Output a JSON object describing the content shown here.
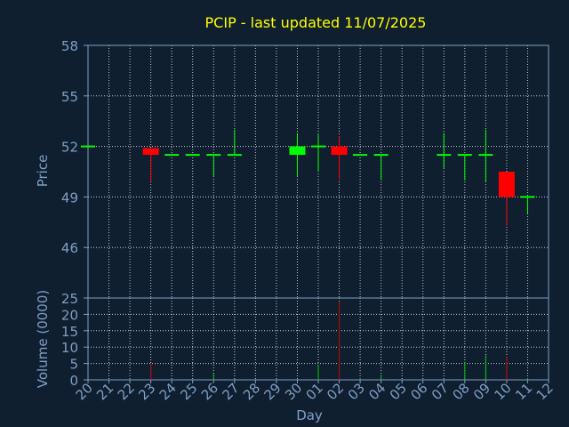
{
  "chart_data": {
    "type": "candlestick",
    "title": "PCIP - last updated 11/07/2025",
    "xlabel": "Day",
    "price_panel": {
      "ylabel": "Price",
      "ylim": [
        43,
        58
      ],
      "yticks": [
        46,
        49,
        52,
        55,
        58
      ],
      "grid": true
    },
    "volume_panel": {
      "ylabel": "Volume (0000)",
      "ylim": [
        0,
        25
      ],
      "yticks": [
        0,
        5,
        10,
        15,
        20,
        25
      ],
      "grid": true
    },
    "x_tick_labels": [
      "20",
      "21",
      "22",
      "23",
      "24",
      "25",
      "26",
      "27",
      "28",
      "29",
      "30",
      "01",
      "02",
      "03",
      "04",
      "05",
      "06",
      "07",
      "08",
      "09",
      "10",
      "11",
      "12"
    ],
    "candles": [
      {
        "day": "20",
        "open": 52.0,
        "high": 52.0,
        "low": 52.0,
        "close": 52.0,
        "volume": 0.0
      },
      {
        "day": "23",
        "open": 51.9,
        "high": 51.9,
        "low": 49.9,
        "close": 51.5,
        "volume": 5.0
      },
      {
        "day": "24",
        "open": 51.5,
        "high": 51.5,
        "low": 51.5,
        "close": 51.5,
        "volume": 0.2
      },
      {
        "day": "25",
        "open": 51.5,
        "high": 51.5,
        "low": 51.5,
        "close": 51.5,
        "volume": 0.2
      },
      {
        "day": "26",
        "open": 51.5,
        "high": 51.5,
        "low": 50.2,
        "close": 51.5,
        "volume": 2.0
      },
      {
        "day": "27",
        "open": 51.5,
        "high": 53.0,
        "low": 51.5,
        "close": 51.5,
        "volume": 0.3
      },
      {
        "day": "30",
        "open": 51.5,
        "high": 52.8,
        "low": 50.2,
        "close": 52.0,
        "volume": 0.3
      },
      {
        "day": "01",
        "open": 52.0,
        "high": 52.7,
        "low": 50.5,
        "close": 52.0,
        "volume": 4.5
      },
      {
        "day": "02",
        "open": 52.0,
        "high": 52.6,
        "low": 50.0,
        "close": 51.5,
        "volume": 24.0
      },
      {
        "day": "03",
        "open": 51.5,
        "high": 51.5,
        "low": 51.5,
        "close": 51.5,
        "volume": 0.5
      },
      {
        "day": "04",
        "open": 51.5,
        "high": 51.5,
        "low": 50.0,
        "close": 51.5,
        "volume": 1.5
      },
      {
        "day": "07",
        "open": 51.5,
        "high": 52.8,
        "low": 50.7,
        "close": 51.5,
        "volume": 0.3
      },
      {
        "day": "08",
        "open": 51.5,
        "high": 51.5,
        "low": 50.0,
        "close": 51.5,
        "volume": 5.5
      },
      {
        "day": "09",
        "open": 51.5,
        "high": 53.0,
        "low": 49.9,
        "close": 51.5,
        "volume": 7.5
      },
      {
        "day": "10",
        "open": 50.5,
        "high": 50.5,
        "low": 47.3,
        "close": 49.0,
        "volume": 7.0
      },
      {
        "day": "11",
        "open": 49.0,
        "high": 49.0,
        "low": 48.0,
        "close": 49.0,
        "volume": 0.5
      }
    ],
    "colors": {
      "background": "#0f1f30",
      "axis": "#7f9fc4",
      "grid": "#ffffff",
      "up": "#00ff00",
      "down": "#ff0000",
      "title": "#ffff00",
      "volume_up": "#00c800",
      "volume_down": "#c80000"
    }
  }
}
